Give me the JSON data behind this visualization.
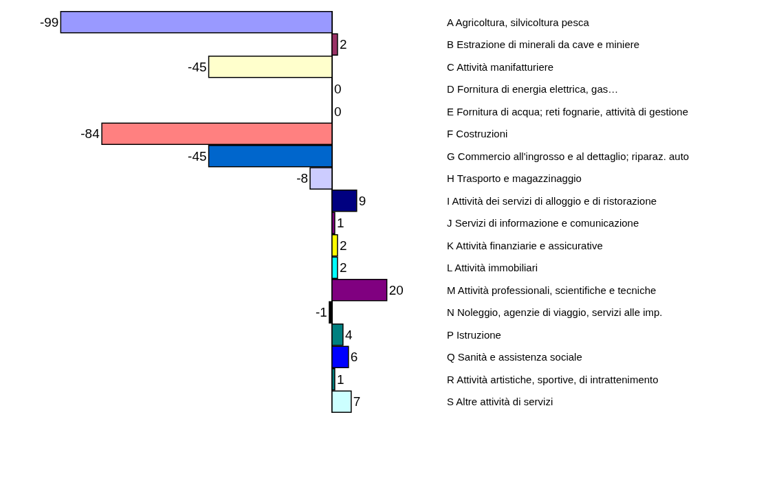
{
  "chart_data": {
    "type": "bar",
    "orientation": "horizontal",
    "categories": [
      "A Agricoltura, silvicoltura pesca",
      "B Estrazione di minerali da cave e miniere",
      "C Attività manifatturiere",
      "D Fornitura di energia elettrica, gas…",
      "E Fornitura di acqua; reti fognarie, attività di gestione",
      "F Costruzioni",
      "G Commercio all'ingrosso e al dettaglio; riparaz. auto",
      "H Trasporto e magazzinaggio",
      "I Attività dei servizi di alloggio e di ristorazione",
      "J Servizi di informazione e comunicazione",
      "K Attività finanziarie e assicurative",
      "L Attività immobiliari",
      "M Attività professionali, scientifiche e tecniche",
      "N Noleggio, agenzie di viaggio, servizi alle imp.",
      "P Istruzione",
      "Q Sanità e assistenza sociale",
      "R Attività artistiche, sportive, di intrattenimento",
      "S Altre attività di servizi"
    ],
    "values": [
      -99,
      2,
      -45,
      0,
      0,
      -84,
      -45,
      -8,
      9,
      1,
      2,
      2,
      20,
      -1,
      4,
      6,
      1,
      7
    ],
    "colors": [
      "#9999ff",
      "#993366",
      "#ffffcc",
      "#ffffff",
      "#ffffff",
      "#ff8080",
      "#0066cc",
      "#ccccff",
      "#000080",
      "#800080",
      "#ffff00",
      "#00ffff",
      "#800080",
      "#000000",
      "#008080",
      "#0000ff",
      "#008080",
      "#ccffff"
    ],
    "data_labels": true,
    "tick_labels": "y",
    "grid": false
  }
}
